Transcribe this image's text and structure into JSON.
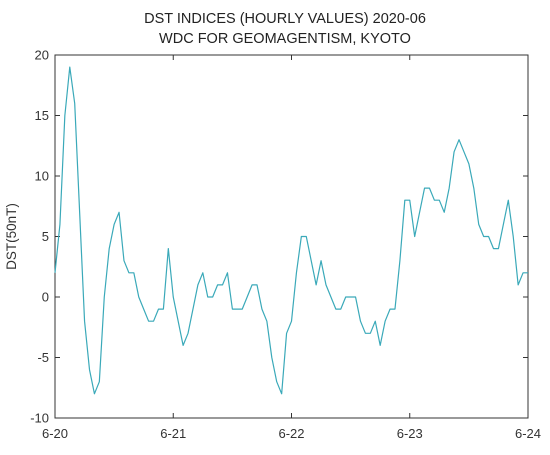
{
  "chart_data": {
    "type": "line",
    "title_lines": [
      "DST INDICES (HOURLY VALUES) 2020-06",
      "WDC FOR GEOMAGENTISM, KYOTO"
    ],
    "xlabel": "",
    "ylabel": "DST(50nT)",
    "xlim": [
      0,
      96
    ],
    "ylim": [
      -10,
      20
    ],
    "x_ticks": [
      {
        "hour": 0,
        "label": "6-20"
      },
      {
        "hour": 24,
        "label": "6-21"
      },
      {
        "hour": 48,
        "label": "6-22"
      },
      {
        "hour": 72,
        "label": "6-23"
      },
      {
        "hour": 96,
        "label": "6-24"
      }
    ],
    "y_ticks": [
      -10,
      -5,
      0,
      5,
      10,
      15,
      20
    ],
    "grid": false,
    "line_color": "#3aa9b9",
    "series": [
      {
        "x_unit": "hours since 6-20 00:00",
        "x": [
          0,
          1,
          2,
          3,
          4,
          5,
          6,
          7,
          8,
          9,
          10,
          11,
          12,
          13,
          14,
          15,
          16,
          17,
          18,
          19,
          20,
          21,
          22,
          23,
          24,
          25,
          26,
          27,
          28,
          29,
          30,
          31,
          32,
          33,
          34,
          35,
          36,
          37,
          38,
          39,
          40,
          41,
          42,
          43,
          44,
          45,
          46,
          47,
          48,
          49,
          50,
          51,
          52,
          53,
          54,
          55,
          56,
          57,
          58,
          59,
          60,
          61,
          62,
          63,
          64,
          65,
          66,
          67,
          68,
          69,
          70,
          71,
          72,
          73,
          74,
          75,
          76,
          77,
          78,
          79,
          80,
          81,
          82,
          83,
          84,
          85,
          86,
          87,
          88,
          89,
          90,
          91,
          92,
          93,
          94,
          95,
          96
        ],
        "values": [
          2,
          6,
          15,
          19,
          16,
          7,
          -2,
          -6,
          -8,
          -7,
          0,
          4,
          6,
          7,
          3,
          2,
          2,
          0,
          -1,
          -2,
          -2,
          -1,
          -1,
          4,
          0,
          -2,
          -4,
          -3,
          -1,
          1,
          2,
          0,
          0,
          1,
          1,
          2,
          -1,
          -1,
          -1,
          0,
          1,
          1,
          -1,
          -2,
          -5,
          -7,
          -8,
          -3,
          -2,
          2,
          5,
          5,
          3,
          1,
          3,
          1,
          0,
          -1,
          -1,
          0,
          0,
          0,
          -2,
          -3,
          -3,
          -2,
          -4,
          -2,
          -1,
          -1,
          3,
          8,
          8,
          5,
          7,
          9,
          9,
          8,
          8,
          7,
          9,
          12,
          13,
          12,
          11,
          9,
          6,
          5,
          5,
          4,
          4,
          6,
          8,
          5,
          1,
          2,
          2
        ]
      }
    ]
  }
}
